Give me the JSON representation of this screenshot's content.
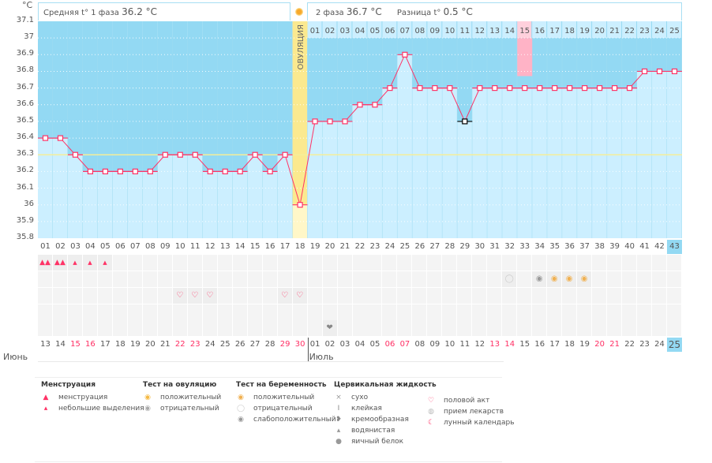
{
  "header": {
    "phase1_label": "Средняя t° 1 фаза",
    "phase1_value": "36.2 °C",
    "phase2_label": "2 фаза",
    "phase2_value": "36.7 °C",
    "diff_label": "Разница t°",
    "diff_value": "0.5 °C",
    "ovulation_label": "ОВУЛЯЦИЯ"
  },
  "chart_data": {
    "type": "line",
    "ylabel": "°C",
    "ylim": [
      35.8,
      37.1
    ],
    "yticks": [
      "37.1",
      "37",
      "36.9",
      "36.8",
      "36.7",
      "36.6",
      "36.5",
      "36.4",
      "36.3",
      "36.2",
      "36.1",
      "36",
      "35.9",
      "35.8"
    ],
    "grid": true,
    "cycle_days": [
      "01",
      "02",
      "03",
      "04",
      "05",
      "06",
      "07",
      "08",
      "09",
      "10",
      "11",
      "12",
      "13",
      "14",
      "15",
      "16",
      "17",
      "18",
      "19",
      "20",
      "21",
      "22",
      "23",
      "24",
      "25",
      "26",
      "27",
      "28",
      "29",
      "30",
      "31",
      "32",
      "33",
      "34",
      "35",
      "36",
      "37",
      "38",
      "39",
      "40",
      "41",
      "42",
      "43"
    ],
    "temperatures": [
      36.4,
      36.4,
      36.3,
      36.2,
      36.2,
      36.2,
      36.2,
      36.2,
      36.3,
      36.3,
      36.3,
      36.2,
      36.2,
      36.2,
      36.3,
      36.2,
      36.3,
      36.0,
      36.5,
      36.5,
      36.5,
      36.6,
      36.6,
      36.7,
      36.9,
      36.7,
      36.7,
      36.7,
      36.5,
      36.7,
      36.7,
      36.7,
      36.7,
      36.7,
      36.7,
      36.7,
      36.7,
      36.7,
      36.7,
      36.7,
      36.8,
      36.8,
      36.8
    ],
    "excluded_days": [
      29
    ],
    "ovulation_day": 18,
    "coverline": 36.3,
    "phase2_days": [
      "01",
      "02",
      "03",
      "04",
      "05",
      "06",
      "07",
      "08",
      "09",
      "10",
      "11",
      "12",
      "13",
      "14",
      "15",
      "16",
      "17",
      "18",
      "19",
      "20",
      "21",
      "22",
      "23",
      "24",
      "25"
    ],
    "highlighted_phase2_day": "15",
    "current_day": "43",
    "dates": [
      "13",
      "14",
      "15",
      "16",
      "17",
      "18",
      "19",
      "20",
      "21",
      "22",
      "23",
      "24",
      "25",
      "26",
      "27",
      "28",
      "29",
      "30",
      "01",
      "02",
      "03",
      "04",
      "05",
      "06",
      "07",
      "08",
      "09",
      "10",
      "11",
      "12",
      "13",
      "14",
      "15",
      "16",
      "17",
      "18",
      "19",
      "20",
      "21",
      "22",
      "23",
      "24",
      "25"
    ],
    "weekend_indices": [
      2,
      3,
      9,
      10,
      16,
      17,
      23,
      24,
      30,
      31,
      37,
      38
    ],
    "months": [
      {
        "label": "Июнь",
        "start": 0
      },
      {
        "label": "Июль",
        "start": 18
      }
    ],
    "colors": {
      "line": "#ff3366",
      "above": "#93d9f3",
      "below": "#ccefff",
      "ovulation": "#fbe98f",
      "highlight": "#ffb3c6",
      "coverline": "#f5ee9a",
      "excluded": "#000000"
    }
  },
  "markers": {
    "menstruation": [
      {
        "day": 1,
        "type": "heavy"
      },
      {
        "day": 2,
        "type": "heavy"
      },
      {
        "day": 3,
        "type": "light"
      },
      {
        "day": 4,
        "type": "light"
      },
      {
        "day": 5,
        "type": "light"
      }
    ],
    "tests": [
      {
        "day": 32,
        "type": "pregnancy-negative"
      },
      {
        "day": 34,
        "type": "pregnancy-weak"
      },
      {
        "day": 35,
        "type": "pregnancy-positive"
      },
      {
        "day": 36,
        "type": "pregnancy-positive"
      },
      {
        "day": 37,
        "type": "pregnancy-positive"
      }
    ],
    "intercourse": [
      10,
      11,
      12,
      17,
      18
    ],
    "cervical": [
      {
        "day": 20,
        "type": "creamy"
      }
    ]
  },
  "legend": [
    {
      "title": "Менструация",
      "items": [
        {
          "icon": "drops-icon",
          "label": "менструация"
        },
        {
          "icon": "drop-icon",
          "label": "небольшие выделения"
        }
      ]
    },
    {
      "title": "Тест на овуляцию",
      "items": [
        {
          "icon": "ovulation-positive-icon",
          "label": "положительный"
        },
        {
          "icon": "ovulation-negative-icon",
          "label": "отрицательный"
        }
      ]
    },
    {
      "title": "Тест на беременность",
      "items": [
        {
          "icon": "pregnancy-positive-icon",
          "label": "положительный"
        },
        {
          "icon": "pregnancy-negative-icon",
          "label": "отрицательный"
        },
        {
          "icon": "pregnancy-weak-icon",
          "label": "слабоположительный"
        }
      ]
    },
    {
      "title": "Цервикальная жидкость",
      "items": [
        {
          "icon": "cross-icon",
          "label": "сухо"
        },
        {
          "icon": "sticky-icon",
          "label": "клейкая"
        },
        {
          "icon": "creamy-icon",
          "label": "кремообразная"
        },
        {
          "icon": "watery-icon",
          "label": "водянистая"
        },
        {
          "icon": "eggwhite-icon",
          "label": "яичный белок"
        }
      ]
    },
    {
      "title": "",
      "items": [
        {
          "icon": "heart-icon",
          "label": "половой акт"
        },
        {
          "icon": "pill-icon",
          "label": "прием лекарств"
        },
        {
          "icon": "moon-icon",
          "label": "лунный календарь"
        }
      ]
    }
  ]
}
